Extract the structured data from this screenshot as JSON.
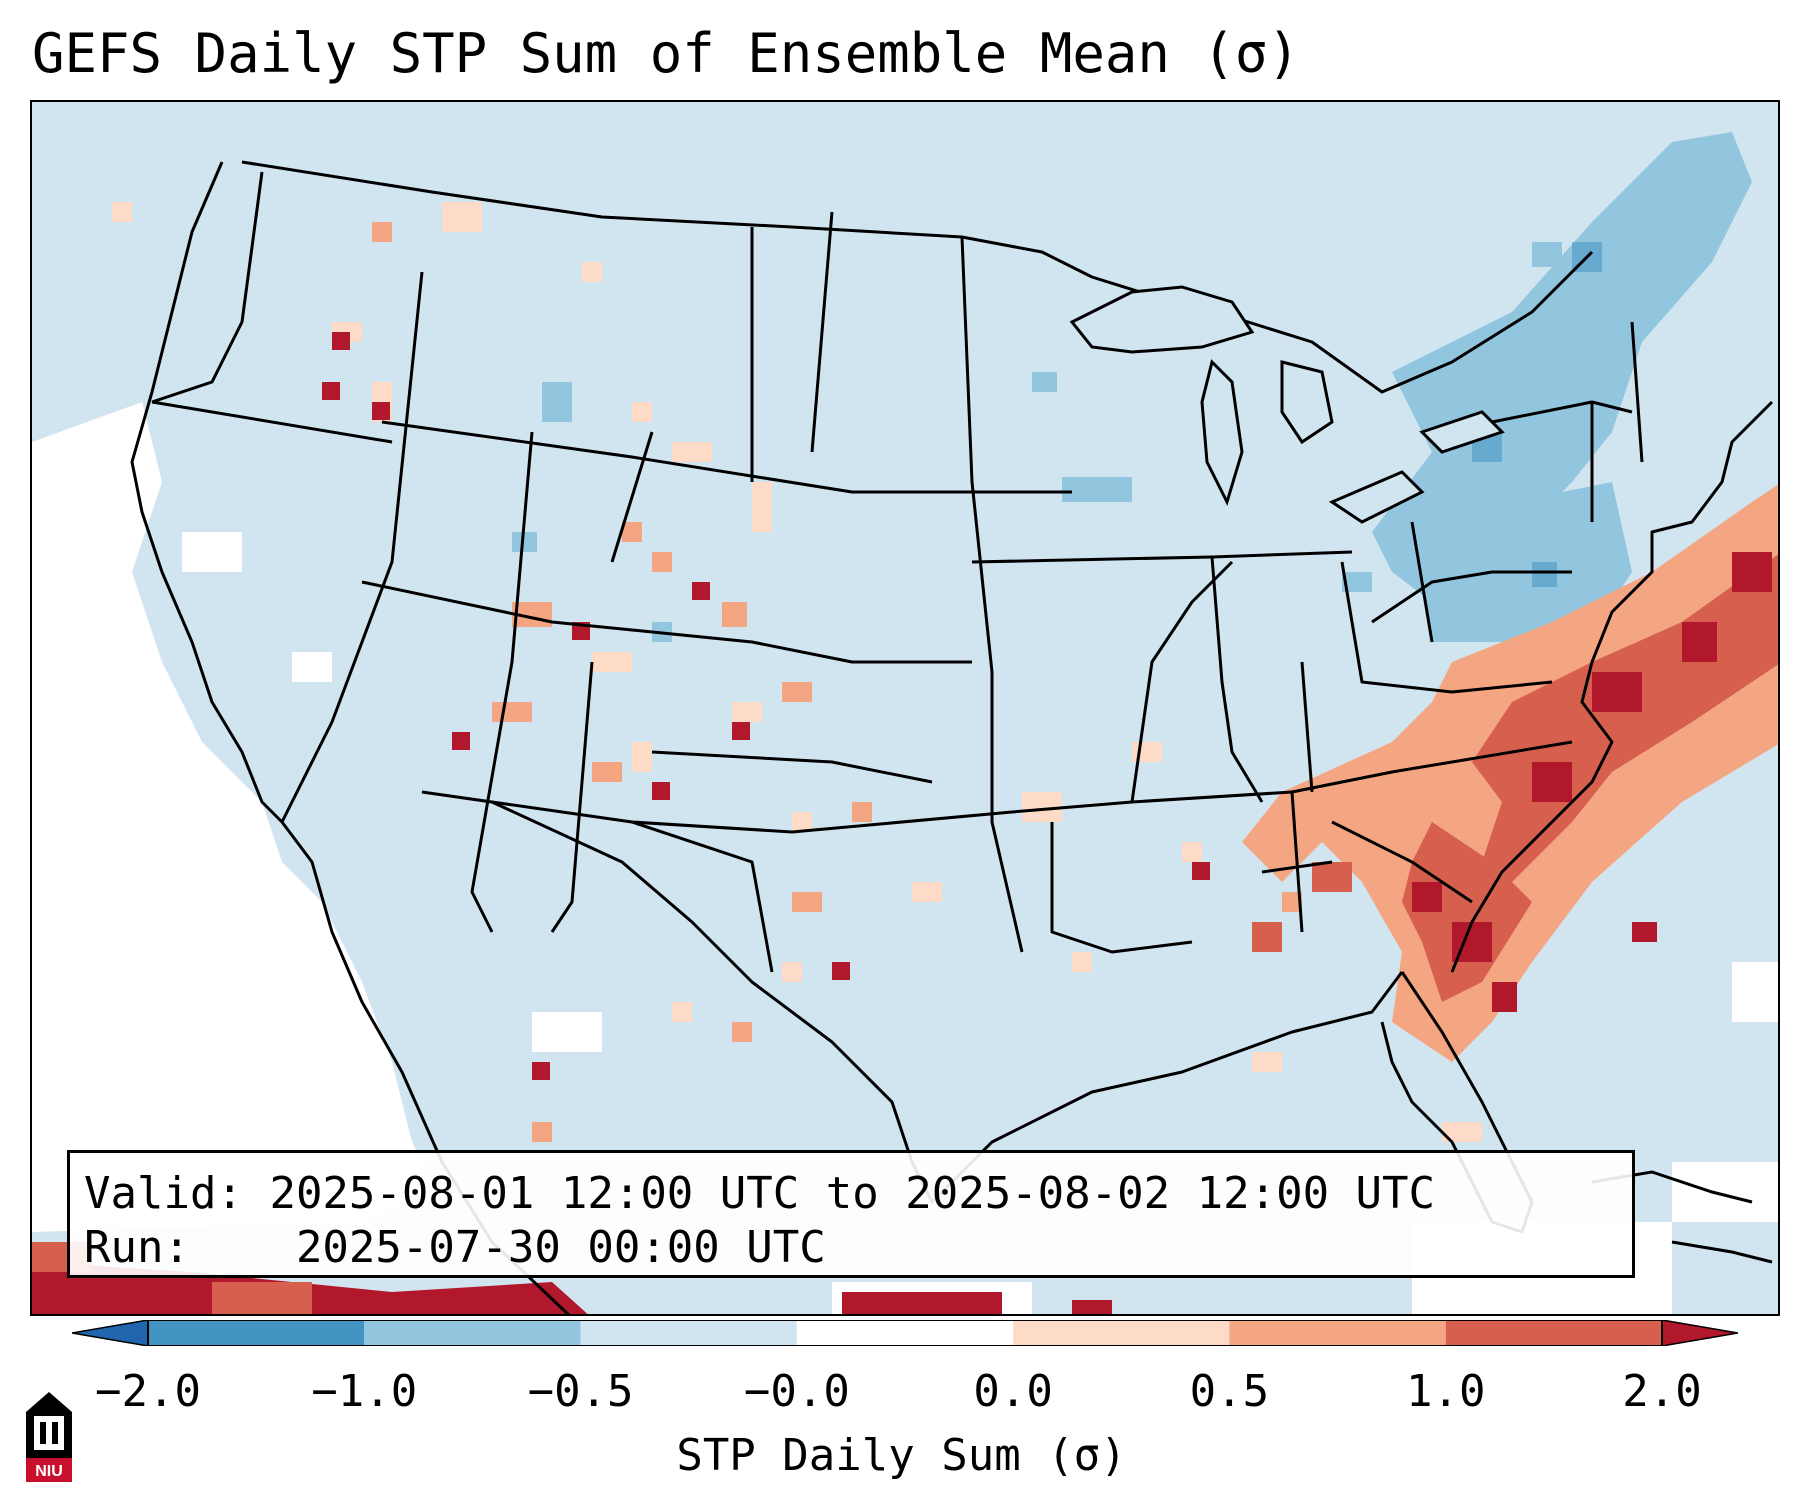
{
  "title": "GEFS Daily STP Sum of Ensemble Mean (σ)",
  "info": {
    "valid_label": "Valid:",
    "valid_value": "2025-08-01 12:00 UTC to 2025-08-02 12:00 UTC",
    "run_label": "Run:",
    "run_value": "2025-07-30 00:00 UTC"
  },
  "colorbar": {
    "label": "STP Daily Sum (σ)",
    "ticks": [
      "−2.0",
      "−1.0",
      "−0.5",
      "−0.0",
      "0.0",
      "0.5",
      "1.0",
      "2.0"
    ],
    "colors": [
      "#2166ac",
      "#4393c3",
      "#92c5de",
      "#d1e5f0",
      "#fddbc7",
      "#f4a582",
      "#d6604d",
      "#b2182b"
    ],
    "under_color": "#2166ac",
    "over_color": "#b2182b",
    "neutral_color": "#ffffff"
  },
  "logo": {
    "text": "NIU"
  },
  "map": {
    "background": "#d1e5f0",
    "region": "Contiguous United States"
  }
}
